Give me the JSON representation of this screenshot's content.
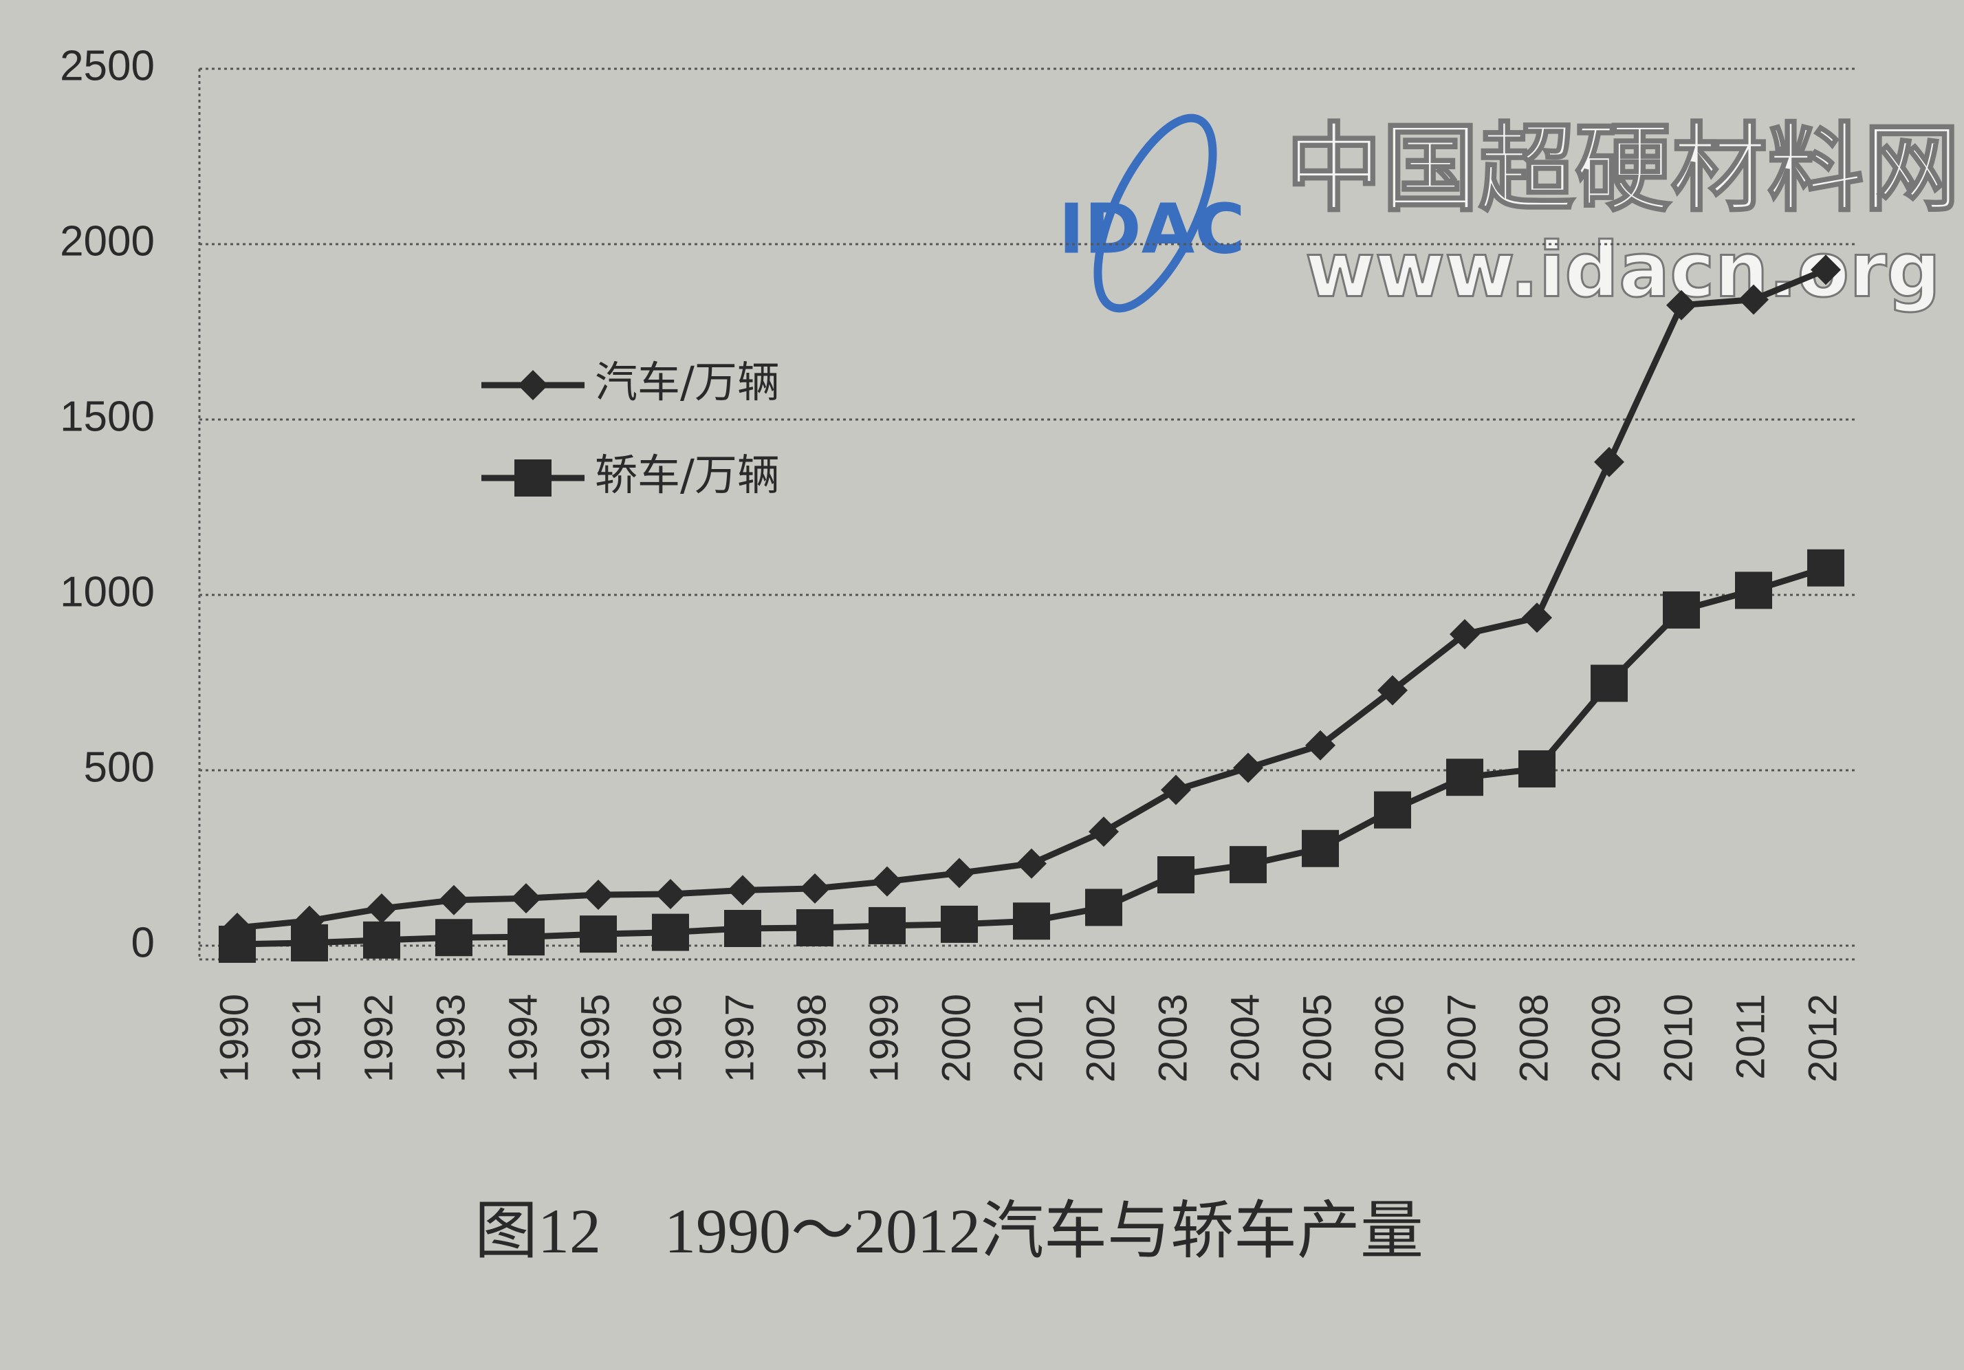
{
  "chart_data": {
    "type": "line",
    "title": "图12　1990～2012汽车与轿车产量",
    "categories": [
      "1990",
      "1991",
      "1992",
      "1993",
      "1994",
      "1995",
      "1996",
      "1997",
      "1998",
      "1999",
      "2000",
      "2001",
      "2002",
      "2003",
      "2004",
      "2005",
      "2006",
      "2007",
      "2008",
      "2009",
      "2010",
      "2011",
      "2012"
    ],
    "series": [
      {
        "name": "汽车/万辆",
        "color": "#2a2a2a",
        "marker": "diamond",
        "values": [
          51,
          71,
          106,
          130,
          135,
          145,
          147,
          158,
          163,
          183,
          207,
          234,
          325,
          444,
          507,
          571,
          728,
          888,
          935,
          1379,
          1826,
          1842,
          1927
        ]
      },
      {
        "name": "轿车/万辆",
        "color": "#2a2a2a",
        "marker": "square",
        "values": [
          4,
          8,
          16,
          23,
          25,
          33,
          38,
          49,
          51,
          57,
          61,
          70,
          109,
          202,
          231,
          277,
          387,
          480,
          504,
          748,
          957,
          1013,
          1077
        ]
      }
    ],
    "ylim": [
      0,
      2500
    ],
    "yticks": [
      0,
      500,
      1000,
      1500,
      2000,
      2500
    ],
    "grid": true,
    "legend": "upper left"
  },
  "watermark": {
    "logo": "IDAC",
    "name": "中国超硬材料网",
    "url": "www.idacn.org"
  }
}
